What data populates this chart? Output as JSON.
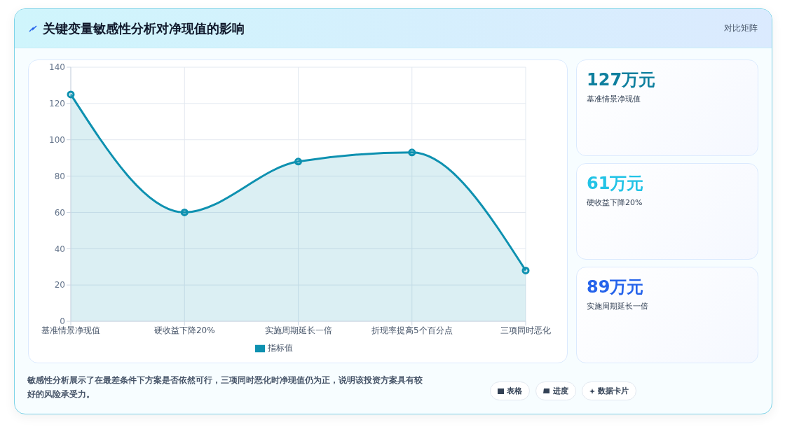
{
  "chart_data": {
    "type": "area",
    "title": "关键变量敏感性分析对净现值的影响",
    "categories": [
      "基准情景净现值",
      "硬收益下降20%",
      "实施周期延长一倍",
      "折现率提高5个百分点",
      "三项同时恶化"
    ],
    "series": [
      {
        "name": "指标值",
        "color": "#0e91b0",
        "values": [
          125,
          60,
          88,
          93,
          28
        ]
      }
    ],
    "ylim": [
      0,
      140
    ],
    "yticks": [
      0,
      20,
      40,
      60,
      80,
      100,
      120,
      140
    ],
    "grid": true,
    "legend": "bottom",
    "marker": "circle",
    "line_style": "solid",
    "annotations": [
      "对比矩阵",
      "127万元",
      "基准情景净现值",
      "61万元",
      "硬收益下降20%",
      "89万元",
      "实施周期延长一倍",
      "敏感性分析展示了在最差条件下方案是否依然可行，三项同时恶化时净现值仍为正，说明该投资方案具有较好的风险承受力。",
      "表格",
      "进度",
      "数据卡片"
    ]
  }
}
